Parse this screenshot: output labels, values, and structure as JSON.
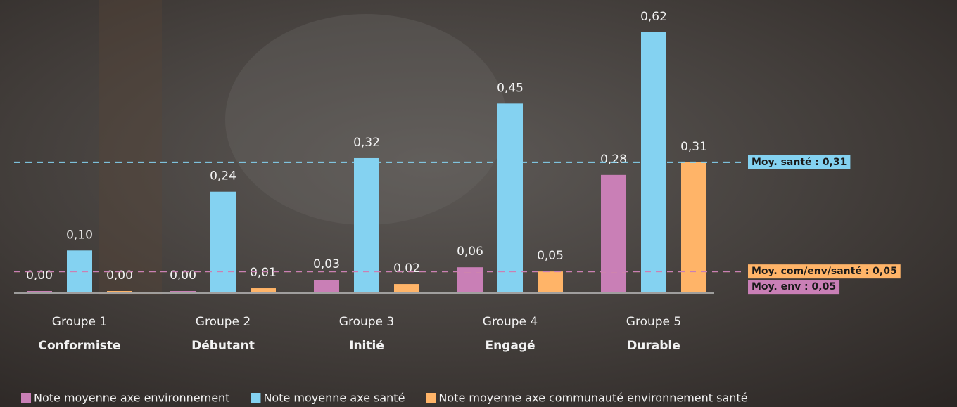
{
  "chart_data": {
    "type": "bar",
    "categories": [
      "Groupe 1",
      "Groupe 2",
      "Groupe 3",
      "Groupe 4",
      "Groupe 5"
    ],
    "category_subtitles": [
      "Conformiste",
      "Débutant",
      "Initié",
      "Engagé",
      "Durable"
    ],
    "series": [
      {
        "name": "Note moyenne axe environnement",
        "color": "#c97fb6",
        "values": [
          0,
          0,
          0.03,
          0.06,
          0.28
        ],
        "value_labels": [
          "0,00",
          "0,00",
          "0,03",
          "0,06",
          "0,28"
        ]
      },
      {
        "name": "Note moyenne axe santé",
        "color": "#84d2f1",
        "values": [
          0.1,
          0.24,
          0.32,
          0.45,
          0.62
        ],
        "value_labels": [
          "0,10",
          "0,24",
          "0,32",
          "0,45",
          "0,62"
        ]
      },
      {
        "name": "Note moyenne axe communauté environnement santé",
        "color": "#ffb468",
        "values": [
          0,
          0.01,
          0.02,
          0.05,
          0.31
        ],
        "value_labels": [
          "0,00",
          "0,01",
          "0,02",
          "0,05",
          "0,31"
        ]
      }
    ],
    "reference_lines": [
      {
        "label": "Moy. santé : 0,31",
        "value": 0.31,
        "color": "#84d2f1"
      },
      {
        "label": "Moy. com/env/santé : 0,05",
        "value": 0.05,
        "color": "#ffb468"
      },
      {
        "label": "Moy. env : 0,05",
        "value": 0.05,
        "color": "#c97fb6"
      }
    ]
  }
}
